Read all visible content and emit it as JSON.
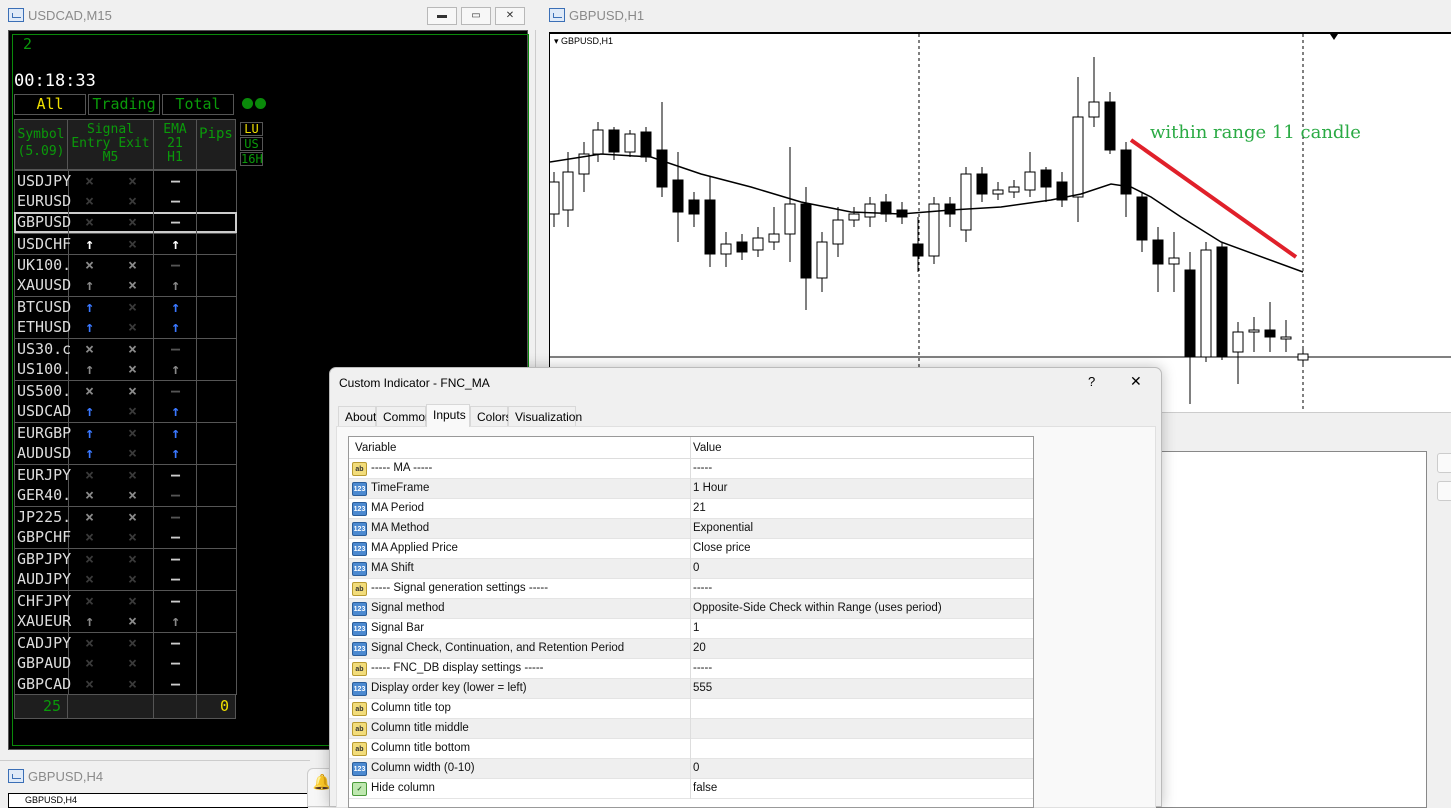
{
  "left_window": {
    "title": "USDCAD,M15",
    "counter": "2",
    "clock": "00:18:33",
    "tabs": [
      "All",
      "Trading",
      "Total"
    ],
    "headers": {
      "symbol": "Symbol",
      "symbol_sub": "(5.09)",
      "signal": "Signal",
      "entry_exit": "Entry Exit",
      "signal_tf": "M5",
      "ema": "EMA",
      "ema_period": "21",
      "ema_tf": "H1",
      "pips": "Pips"
    },
    "side_buttons": [
      "LU",
      "US",
      "16H"
    ],
    "rows": [
      [
        "USDJPY",
        "x0",
        "x0",
        "-"
      ],
      [
        "EURUSD",
        "x0",
        "x0",
        "-"
      ],
      [
        "GBPUSD",
        "x0",
        "x0",
        "-"
      ],
      [
        "USDCHF",
        "uW",
        "x0",
        "uW"
      ],
      [
        "UK100.",
        "x1",
        "x1",
        "-d"
      ],
      [
        "XAUUSD",
        "uG",
        "x1",
        "uG"
      ],
      [
        "BTCUSD",
        "uB",
        "x0",
        "uB"
      ],
      [
        "ETHUSD",
        "uB",
        "x0",
        "uB"
      ],
      [
        "US30.c",
        "x1",
        "x1",
        "-d"
      ],
      [
        "US100.",
        "uG",
        "x1",
        "uG"
      ],
      [
        "US500.",
        "x1",
        "x1",
        "-d"
      ],
      [
        "USDCAD",
        "uB",
        "x0",
        "uB"
      ],
      [
        "EURGBP",
        "uB",
        "x0",
        "uB"
      ],
      [
        "AUDUSD",
        "uB",
        "x0",
        "uB"
      ],
      [
        "EURJPY",
        "x0",
        "x0",
        "-"
      ],
      [
        "GER40.",
        "x1",
        "x1",
        "-d"
      ],
      [
        "JP225.",
        "x1",
        "x1",
        "-d"
      ],
      [
        "GBPCHF",
        "x0",
        "x0",
        "-"
      ],
      [
        "GBPJPY",
        "x0",
        "x0",
        "-"
      ],
      [
        "AUDJPY",
        "x0",
        "x0",
        "-"
      ],
      [
        "CHFJPY",
        "x0",
        "x0",
        "-"
      ],
      [
        "XAUEUR",
        "uG",
        "x1",
        "uG"
      ],
      [
        "CADJPY",
        "x0",
        "x0",
        "-"
      ],
      [
        "GBPAUD",
        "x0",
        "x0",
        "-"
      ],
      [
        "GBPCAD",
        "x0",
        "x0",
        "-"
      ]
    ],
    "selected_symbol": "GBPUSD",
    "footer_count": "25",
    "footer_pips": "0",
    "colors": {
      "green": "#0a9a0a",
      "yellow": "#f0e000",
      "blue_arrow": "#3a78ff"
    }
  },
  "bottom_window": {
    "title": "GBPUSD,H4",
    "chart_label": "GBPUSD,H4"
  },
  "chart_window": {
    "title": "GBPUSD,H1",
    "chart_label": "GBPUSD,H1",
    "annotation": "within range 11 candle",
    "annotation_color": "#2aaa44",
    "trendline_color": "#e0202a"
  },
  "dialog": {
    "title": "Custom Indicator - FNC_MA",
    "help": "?",
    "close": "✕",
    "tabs": [
      "About",
      "Common",
      "Inputs",
      "Colors",
      "Visualization"
    ],
    "active_tab": "Inputs",
    "columns": [
      "Variable",
      "Value"
    ],
    "params": [
      {
        "type": "ab",
        "name": "----- MA -----",
        "value": "-----"
      },
      {
        "type": "123",
        "name": "TimeFrame",
        "value": "1 Hour"
      },
      {
        "type": "123",
        "name": "MA Period",
        "value": "21"
      },
      {
        "type": "123",
        "name": "MA Method",
        "value": "Exponential"
      },
      {
        "type": "123",
        "name": "MA Applied Price",
        "value": "Close price"
      },
      {
        "type": "123",
        "name": "MA Shift",
        "value": "0"
      },
      {
        "type": "ab",
        "name": "----- Signal generation settings -----",
        "value": "-----"
      },
      {
        "type": "123",
        "name": "Signal method",
        "value": "Opposite-Side Check within Range (uses period)"
      },
      {
        "type": "123",
        "name": "Signal Bar",
        "value": "1"
      },
      {
        "type": "123",
        "name": "Signal Check, Continuation, and Retention Period",
        "value": "20"
      },
      {
        "type": "ab",
        "name": "----- FNC_DB display settings -----",
        "value": "-----"
      },
      {
        "type": "123",
        "name": "Display order key (lower = left)",
        "value": "555"
      },
      {
        "type": "ab",
        "name": "Column title top",
        "value": ""
      },
      {
        "type": "ab",
        "name": "Column title middle",
        "value": ""
      },
      {
        "type": "ab",
        "name": "Column title bottom",
        "value": ""
      },
      {
        "type": "123",
        "name": "Column width (0-10)",
        "value": "0"
      },
      {
        "type": "bool",
        "name": "Hide column",
        "value": "false"
      }
    ]
  }
}
